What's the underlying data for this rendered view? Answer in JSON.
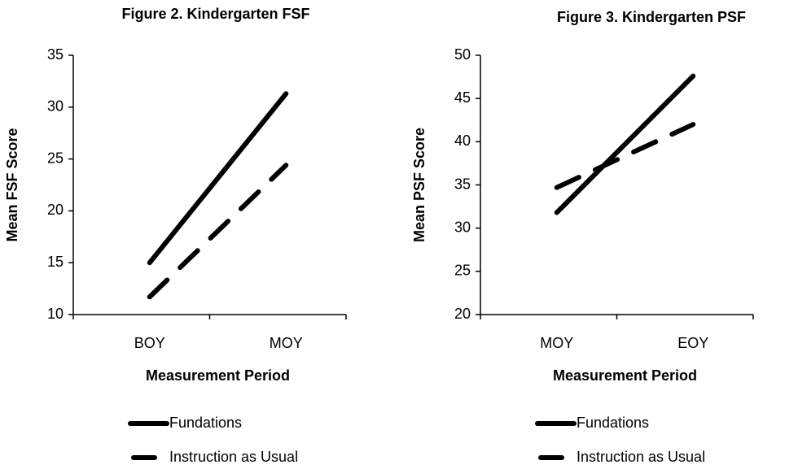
{
  "chart_data": [
    {
      "type": "line",
      "title": "Figure 2. Kindergarten FSF",
      "x_label": "Measurement Period",
      "y_label": "Mean FSF Score",
      "categories": [
        "BOY",
        "MOY"
      ],
      "series": [
        {
          "name": "Fundations",
          "color": "#000000",
          "style": "solid",
          "values": [
            15.0,
            31.3
          ]
        },
        {
          "name": "Instruction as Usual",
          "color": "#000000",
          "style": "dashed",
          "values": [
            11.7,
            24.4
          ]
        }
      ],
      "ylim": [
        10,
        35
      ],
      "yticks": [
        10,
        15,
        20,
        25,
        30,
        35
      ],
      "grid": false
    },
    {
      "type": "line",
      "title": "Figure 3. Kindergarten PSF",
      "x_label": "Measurement Period",
      "y_label": "Mean PSF Score",
      "categories": [
        "MOY",
        "EOY"
      ],
      "series": [
        {
          "name": "Fundations",
          "color": "#000000",
          "style": "solid",
          "values": [
            31.8,
            47.6
          ]
        },
        {
          "name": "Instruction as Usual",
          "color": "#000000",
          "style": "dashed",
          "values": [
            34.7,
            42.0
          ]
        }
      ],
      "ylim": [
        20,
        50
      ],
      "yticks": [
        20,
        25,
        30,
        35,
        40,
        45,
        50
      ],
      "grid": false
    }
  ]
}
